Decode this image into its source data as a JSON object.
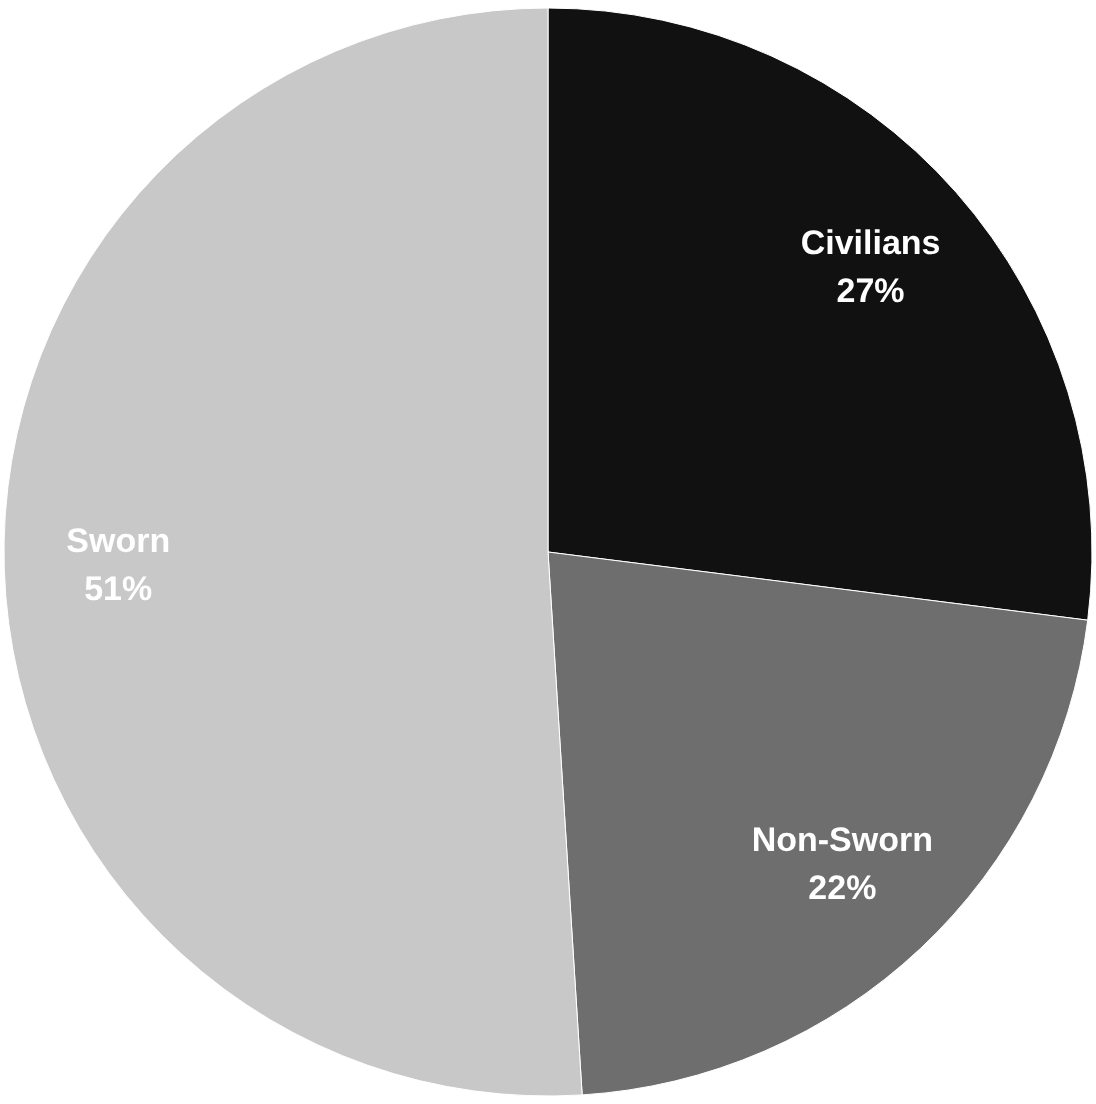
{
  "chart_data": {
    "type": "pie",
    "categories": [
      "Civilians",
      "Non-Sworn",
      "Sworn"
    ],
    "values": [
      27,
      22,
      51
    ],
    "colors": [
      "#111111",
      "#6e6e6e",
      "#c8c8c8"
    ],
    "value_labels": [
      "27%",
      "22%",
      "51%"
    ]
  }
}
